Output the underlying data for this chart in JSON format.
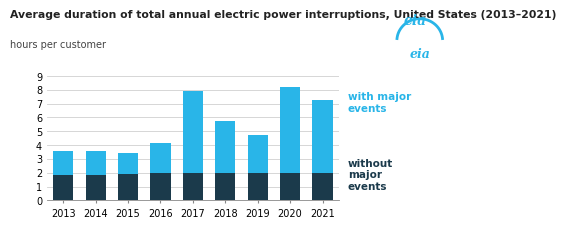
{
  "years": [
    2013,
    2014,
    2015,
    2016,
    2017,
    2018,
    2019,
    2020,
    2021
  ],
  "without_major": [
    1.8,
    1.85,
    1.9,
    2.0,
    1.95,
    2.0,
    2.0,
    2.0,
    2.0
  ],
  "total_with_major": [
    3.55,
    3.6,
    3.4,
    4.15,
    7.9,
    5.75,
    4.75,
    8.2,
    7.3
  ],
  "color_without": "#1b3a4b",
  "color_with": "#29b5e8",
  "title": "Average duration of total annual electric power interruptions, United States (2013–2021)",
  "subtitle": "hours per customer",
  "ylim": [
    0,
    9
  ],
  "yticks": [
    0,
    1,
    2,
    3,
    4,
    5,
    6,
    7,
    8,
    9
  ],
  "legend_with": "with major\nevents",
  "legend_without": "without\nmajor\nevents",
  "title_fontsize": 7.8,
  "subtitle_fontsize": 7.0,
  "tick_fontsize": 7.0,
  "legend_fontsize": 7.5,
  "bg_color": "#f5f5f5"
}
